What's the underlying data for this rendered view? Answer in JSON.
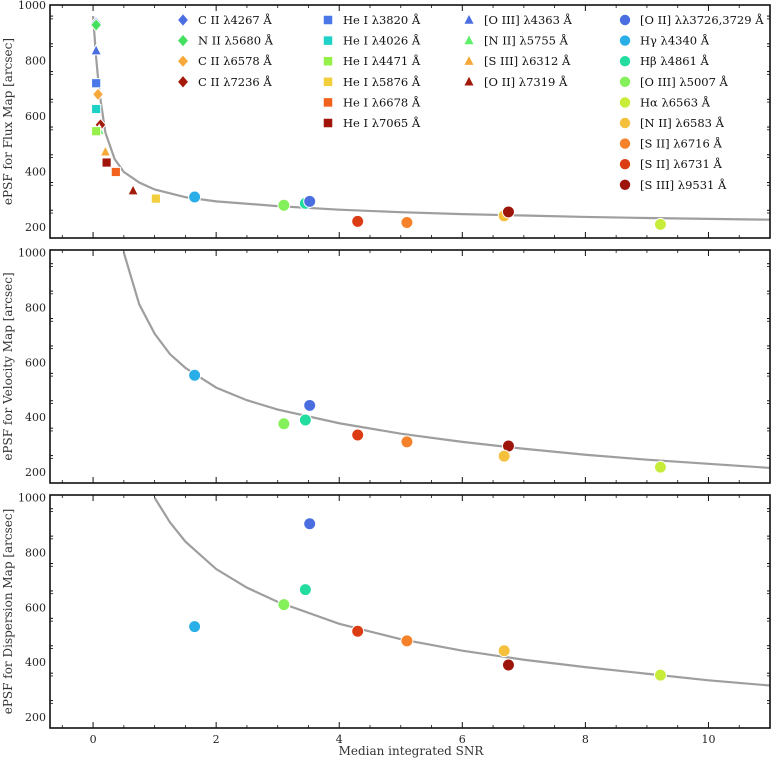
{
  "chart_data": {
    "type": "scatter",
    "xlabel": "Median integrated SNR",
    "xlim": [
      -0.7,
      11
    ],
    "x_ticks": [
      0,
      2,
      4,
      6,
      8,
      10
    ],
    "legend_placement": "top (inside upper panel)",
    "grid": false,
    "panels": [
      {
        "id": "flux",
        "ylabel": "ePSF for Flux Map [arcsec]",
        "ylim": [
          160,
          1000
        ],
        "y_ticks": [
          200,
          400,
          600,
          800,
          1000
        ],
        "fit_curve": {
          "color": "#9e9e9e",
          "x": [
            0.0,
            0.05,
            0.1,
            0.2,
            0.35,
            0.5,
            0.75,
            1.0,
            1.5,
            2.0,
            3.0,
            4.0,
            5.0,
            6.0,
            7.0,
            8.0,
            9.0,
            10.0,
            11.0
          ],
          "y": [
            960,
            810,
            690,
            540,
            445,
            398,
            360,
            335,
            307,
            292,
            275,
            262,
            253,
            246,
            241,
            236,
            232,
            229,
            226
          ]
        },
        "points": [
          {
            "label": "C II λ4267 Å",
            "x": 0.05,
            "y": 935
          },
          {
            "label": "N II λ5680 Å",
            "x": 0.05,
            "y": 928
          },
          {
            "label": "[O III] λ4363 Å",
            "x": 0.05,
            "y": 835
          },
          {
            "label": "He I λ3820 Å",
            "x": 0.05,
            "y": 718
          },
          {
            "label": "C II λ6578 Å",
            "x": 0.08,
            "y": 678
          },
          {
            "label": "He I λ4026 Å",
            "x": 0.05,
            "y": 625
          },
          {
            "label": "C II λ7236 Å",
            "x": 0.12,
            "y": 568
          },
          {
            "label": "[N II] λ5755 Å",
            "x": 0.1,
            "y": 548
          },
          {
            "label": "He I λ4471 Å",
            "x": 0.05,
            "y": 545
          },
          {
            "label": "[S III] λ6312 Å",
            "x": 0.2,
            "y": 470
          },
          {
            "label": "He I λ7065 Å",
            "x": 0.22,
            "y": 432
          },
          {
            "label": "He I λ6678 Å",
            "x": 0.37,
            "y": 398
          },
          {
            "label": "[O II] λ7319 Å",
            "x": 0.65,
            "y": 330
          },
          {
            "label": "He I λ5876 Å",
            "x": 1.02,
            "y": 302
          },
          {
            "label": "Hγ λ4340 Å",
            "x": 1.65,
            "y": 308
          },
          {
            "label": "[O III] λ5007 Å",
            "x": 3.1,
            "y": 278
          },
          {
            "label": "Hβ λ4861 Å",
            "x": 3.45,
            "y": 285
          },
          {
            "label": "[O II] λλ3726,3729 Å",
            "x": 3.52,
            "y": 292
          },
          {
            "label": "[S II] λ6731 Å",
            "x": 4.3,
            "y": 220
          },
          {
            "label": "[S II] λ6716 Å",
            "x": 5.1,
            "y": 216
          },
          {
            "label": "[N II] λ6583 Å",
            "x": 6.68,
            "y": 240
          },
          {
            "label": "[S III] λ9531 Å",
            "x": 6.75,
            "y": 254
          },
          {
            "label": "Hα λ6563 Å",
            "x": 9.22,
            "y": 209
          }
        ]
      },
      {
        "id": "velocity",
        "ylabel": "ePSF for Velocity Map [arcsec]",
        "ylim": [
          160,
          1010
        ],
        "y_ticks": [
          200,
          400,
          600,
          800,
          1000
        ],
        "fit_curve": {
          "color": "#9e9e9e",
          "x": [
            0.5,
            0.75,
            1.0,
            1.25,
            1.5,
            2.0,
            2.5,
            3.0,
            4.0,
            5.0,
            6.0,
            7.0,
            8.0,
            9.0,
            10.0,
            11.0
          ],
          "y": [
            1000,
            812,
            705,
            630,
            580,
            508,
            462,
            428,
            378,
            340,
            310,
            285,
            263,
            245,
            230,
            215
          ]
        },
        "points": [
          {
            "label": "Hγ λ4340 Å",
            "x": 1.65,
            "y": 553
          },
          {
            "label": "[O II] λλ3726,3729 Å",
            "x": 3.52,
            "y": 443
          },
          {
            "label": "[O III] λ5007 Å",
            "x": 3.1,
            "y": 376
          },
          {
            "label": "Hβ λ4861 Å",
            "x": 3.45,
            "y": 390
          },
          {
            "label": "[S II] λ6731 Å",
            "x": 4.3,
            "y": 335
          },
          {
            "label": "[S II] λ6716 Å",
            "x": 5.1,
            "y": 310
          },
          {
            "label": "[S III] λ9531 Å",
            "x": 6.75,
            "y": 295
          },
          {
            "label": "[N II] λ6583 Å",
            "x": 6.68,
            "y": 258
          },
          {
            "label": "Hα λ6563 Å",
            "x": 9.22,
            "y": 218
          }
        ]
      },
      {
        "id": "dispersion",
        "ylabel": "ePSF for Dispersion Map [arcsec]",
        "ylim": [
          160,
          1010
        ],
        "y_ticks": [
          200,
          400,
          600,
          800,
          1000
        ],
        "fit_curve": {
          "color": "#9e9e9e",
          "x": [
            1.0,
            1.25,
            1.5,
            2.0,
            2.5,
            3.0,
            4.0,
            5.0,
            6.0,
            7.0,
            8.0,
            9.0,
            10.0,
            11.0
          ],
          "y": [
            1000,
            910,
            840,
            740,
            672,
            620,
            540,
            484,
            442,
            409,
            382,
            358,
            334,
            315
          ]
        },
        "points": [
          {
            "label": "Hγ λ4340 Å",
            "x": 1.65,
            "y": 530
          },
          {
            "label": "[O III] λ5007 Å",
            "x": 3.1,
            "y": 610
          },
          {
            "label": "Hβ λ4861 Å",
            "x": 3.45,
            "y": 665
          },
          {
            "label": "[O II] λλ3726,3729 Å",
            "x": 3.52,
            "y": 905
          },
          {
            "label": "[S II] λ6731 Å",
            "x": 4.3,
            "y": 513
          },
          {
            "label": "[S II] λ6716 Å",
            "x": 5.1,
            "y": 478
          },
          {
            "label": "[N II] λ6583 Å",
            "x": 6.68,
            "y": 442
          },
          {
            "label": "[S III] λ9531 Å",
            "x": 6.75,
            "y": 390
          },
          {
            "label": "Hα λ6563 Å",
            "x": 9.22,
            "y": 353
          }
        ]
      }
    ],
    "legend": [
      {
        "label": "C II λ4267 Å",
        "marker": "diamond",
        "color": "#4a6ee0"
      },
      {
        "label": "N II λ5680 Å",
        "marker": "diamond",
        "color": "#45e060"
      },
      {
        "label": "C II λ6578 Å",
        "marker": "diamond",
        "color": "#f7a83a"
      },
      {
        "label": "C II λ7236 Å",
        "marker": "diamond",
        "color": "#a31a0a"
      },
      {
        "label": "He I λ3820 Å",
        "marker": "square",
        "color": "#4a78e8"
      },
      {
        "label": "He I λ4026 Å",
        "marker": "square",
        "color": "#1ed2c8"
      },
      {
        "label": "He I λ4471 Å",
        "marker": "square",
        "color": "#96f04a"
      },
      {
        "label": "He I λ5876 Å",
        "marker": "square",
        "color": "#f2cd3c"
      },
      {
        "label": "He I λ6678 Å",
        "marker": "square",
        "color": "#f2621e"
      },
      {
        "label": "He I λ7065 Å",
        "marker": "square",
        "color": "#a0140a"
      },
      {
        "label": "[O III] λ4363 Å",
        "marker": "triangle",
        "color": "#4a6ee0"
      },
      {
        "label": "[N II] λ5755 Å",
        "marker": "triangle",
        "color": "#5ef06a"
      },
      {
        "label": "[S III] λ6312 Å",
        "marker": "triangle",
        "color": "#f7a83a"
      },
      {
        "label": "[O II] λ7319 Å",
        "marker": "triangle",
        "color": "#a31a0a"
      },
      {
        "label": "[O II] λλ3726,3729 Å",
        "marker": "circle",
        "color": "#4a6ee0"
      },
      {
        "label": "Hγ λ4340 Å",
        "marker": "circle",
        "color": "#2aaee8"
      },
      {
        "label": "Hβ λ4861 Å",
        "marker": "circle",
        "color": "#22dca0"
      },
      {
        "label": "[O III] λ5007 Å",
        "marker": "circle",
        "color": "#84f05a"
      },
      {
        "label": "Hα λ6563 Å",
        "marker": "circle",
        "color": "#c8ec3a"
      },
      {
        "label": "[N II] λ6583 Å",
        "marker": "circle",
        "color": "#f5c03c"
      },
      {
        "label": "[S II] λ6716 Å",
        "marker": "circle",
        "color": "#f5822a"
      },
      {
        "label": "[S II] λ6731 Å",
        "marker": "circle",
        "color": "#dc3c14"
      },
      {
        "label": "[S III] λ9531 Å",
        "marker": "circle",
        "color": "#9c140a"
      }
    ]
  }
}
